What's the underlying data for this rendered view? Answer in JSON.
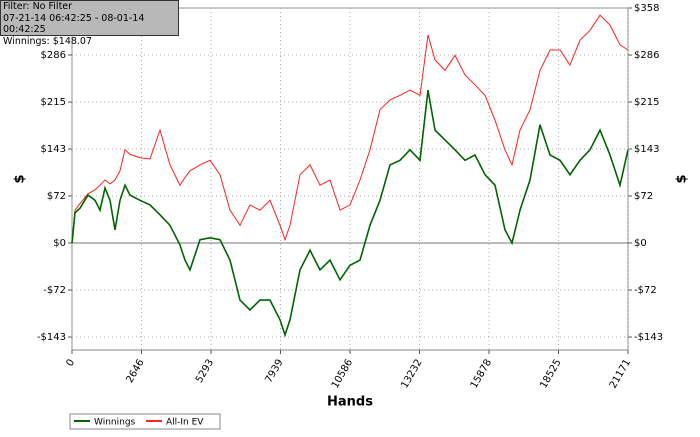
{
  "info": {
    "filter": "Filter: No Filter",
    "range": "07-21-14 06:42:25 - 08-01-14 00:42:25",
    "winnings": "Winnings: $148.07"
  },
  "chart_data": {
    "type": "line",
    "xlabel": "Hands",
    "ylabel": "$",
    "y2label": "$",
    "x": [
      0,
      114,
      305,
      609,
      876,
      1066,
      1257,
      1447,
      1638,
      1828,
      2018,
      2209,
      2589,
      2970,
      3351,
      3732,
      4112,
      4303,
      4493,
      4874,
      5255,
      5636,
      6016,
      6397,
      6778,
      7159,
      7540,
      7920,
      8111,
      8301,
      8682,
      9063,
      9444,
      9824,
      10205,
      10586,
      10967,
      11348,
      11728,
      12109,
      12490,
      12871,
      13252,
      13556,
      13823,
      14204,
      14584,
      14965,
      15346,
      15727,
      16108,
      16488,
      16755,
      17060,
      17440,
      17821,
      18202,
      18583,
      18964,
      19344,
      19725,
      20106,
      20487,
      20868,
      21171
    ],
    "series": [
      {
        "name": "Winnings",
        "color": "#006400",
        "values": [
          0,
          46,
          53,
          73,
          65,
          50,
          84,
          65,
          20,
          65,
          88,
          73,
          65,
          58,
          43,
          27,
          -3,
          -26,
          -41,
          5,
          8,
          5,
          -26,
          -87,
          -102,
          -87,
          -87,
          -117,
          -140,
          -117,
          -41,
          -11,
          -41,
          -26,
          -56,
          -34,
          -26,
          27,
          65,
          119,
          126,
          142,
          126,
          233,
          172,
          157,
          142,
          126,
          134,
          104,
          88,
          20,
          0,
          50,
          96,
          180,
          134,
          126,
          104,
          126,
          142,
          172,
          134,
          88,
          142
        ]
      },
      {
        "name": "All-In EV",
        "color": "#ff2020",
        "values": [
          0,
          50,
          60,
          75,
          81,
          88,
          96,
          90,
          96,
          110,
          142,
          135,
          130,
          128,
          172,
          119,
          88,
          100,
          110,
          119,
          126,
          104,
          50,
          27,
          58,
          50,
          65,
          27,
          5,
          27,
          104,
          119,
          88,
          96,
          50,
          58,
          96,
          142,
          203,
          218,
          225,
          233,
          225,
          317,
          279,
          263,
          286,
          256,
          241,
          225,
          187,
          142,
          119,
          172,
          203,
          263,
          294,
          294,
          271,
          309,
          324,
          347,
          332,
          302,
          294
        ]
      }
    ],
    "xlim": [
      0,
      21171
    ],
    "xticks": [
      0,
      2646,
      5293,
      7939,
      10586,
      13232,
      15878,
      18525,
      21171
    ],
    "ylim": [
      -163,
      358
    ],
    "yticks": [
      {
        "value": -143.2,
        "label": "-$143"
      },
      {
        "value": -71.6,
        "label": "-$72"
      },
      {
        "value": 0,
        "label": "$0"
      },
      {
        "value": 71.6,
        "label": "$72"
      },
      {
        "value": 143.2,
        "label": "$143"
      },
      {
        "value": 214.8,
        "label": "$215"
      },
      {
        "value": 286.4,
        "label": "$286"
      },
      {
        "value": 358,
        "label": "$358"
      }
    ],
    "grid": true
  }
}
